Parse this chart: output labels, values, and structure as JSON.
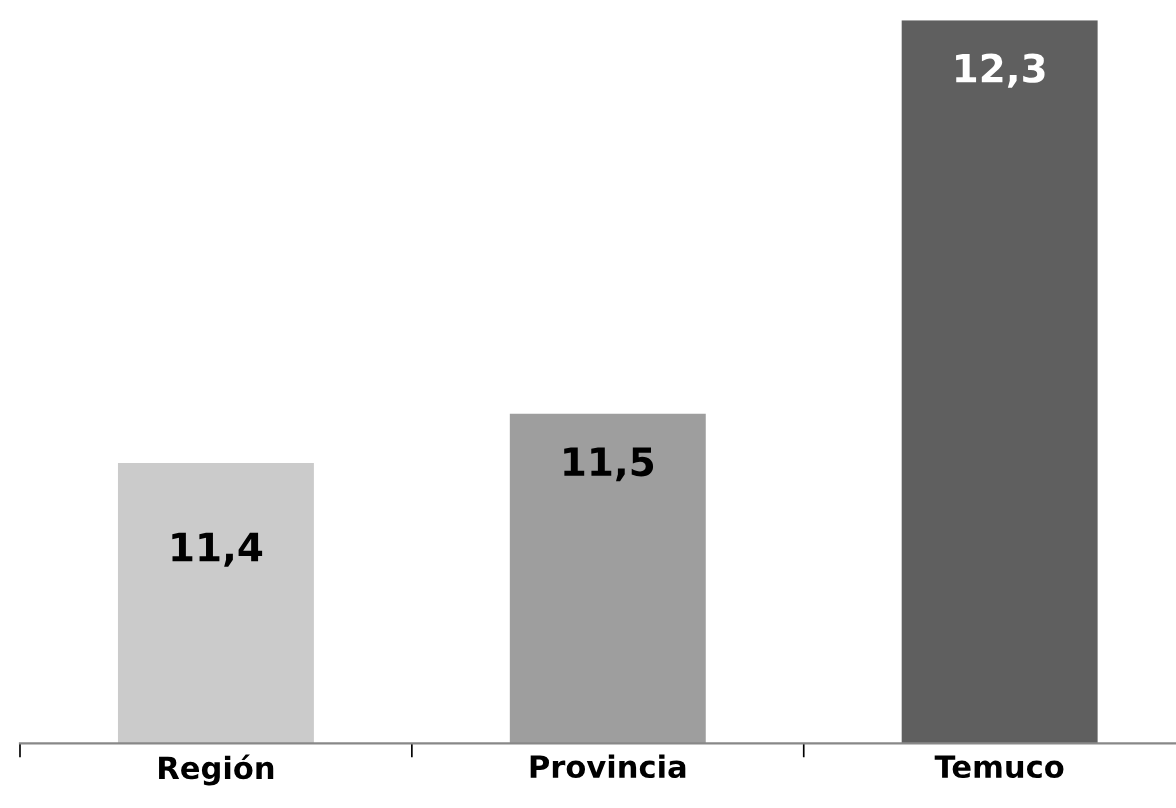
{
  "chart_data": {
    "type": "bar",
    "categories": [
      "Región",
      "Provincia",
      "Temuco"
    ],
    "values": [
      11.4,
      11.5,
      12.3
    ],
    "colors": [
      "#cbcbcb",
      "#9e9e9e",
      "#5f5f5f"
    ],
    "value_labels": [
      "11,4",
      "11,5",
      "12,3"
    ],
    "ylim": [
      10.83,
      12.3
    ],
    "tick_labels": "x",
    "grid": false,
    "legend": false
  }
}
